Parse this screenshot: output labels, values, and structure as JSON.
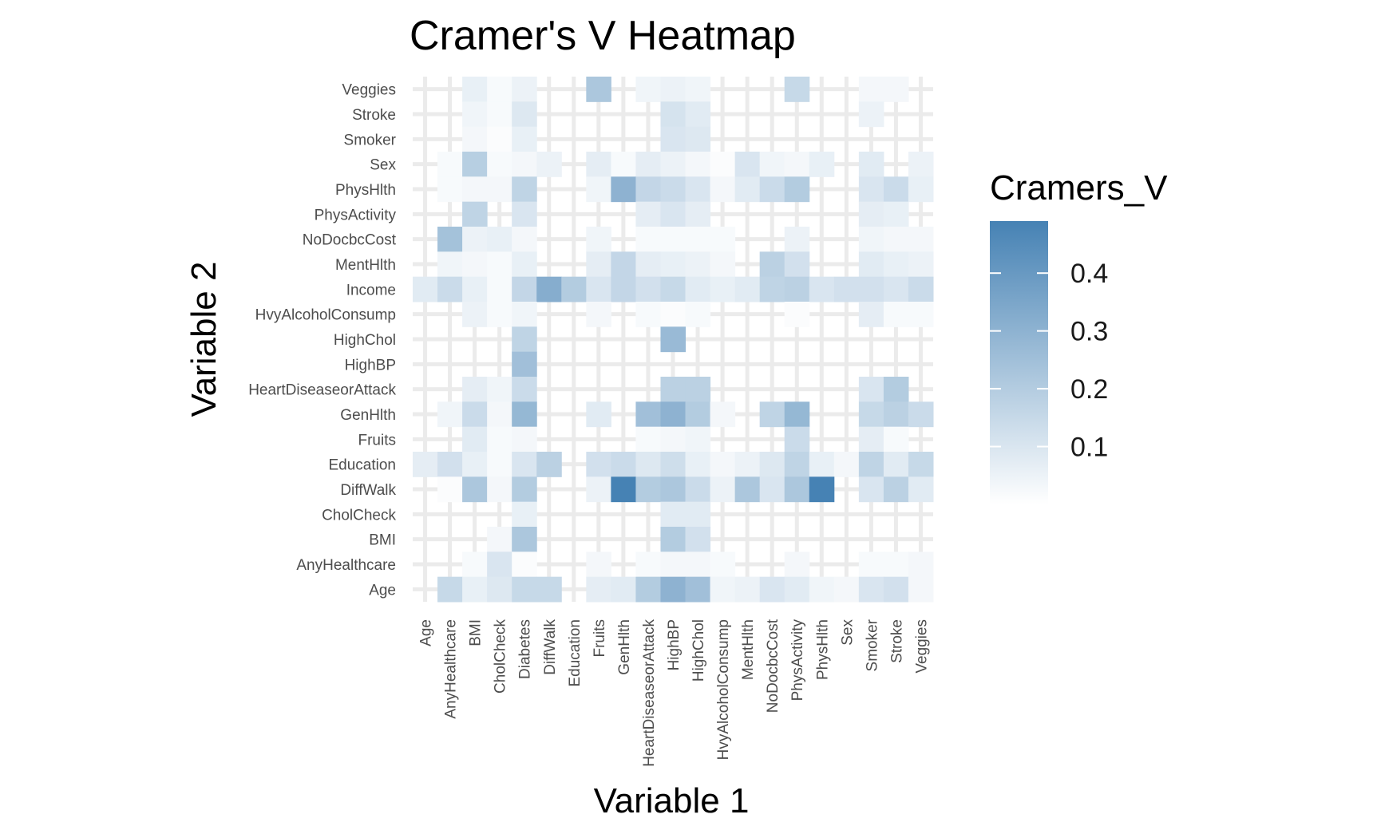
{
  "chart_data": {
    "type": "heatmap",
    "title": "Cramer's V Heatmap",
    "xlabel": "Variable 1",
    "ylabel": "Variable 2",
    "legend": {
      "title": "Cramers_V",
      "position": "right",
      "range": [
        0,
        0.49
      ],
      "breaks": [
        "0.1",
        "0.2",
        "0.3",
        "0.4"
      ],
      "break_values": [
        0.1,
        0.2,
        0.3,
        0.4
      ],
      "color_low": "#ffffff",
      "color_high": "#4682b4"
    },
    "grid": true,
    "x_categories": [
      "Age",
      "AnyHealthcare",
      "BMI",
      "CholCheck",
      "Diabetes",
      "DiffWalk",
      "Education",
      "Fruits",
      "GenHlth",
      "HeartDiseaseorAttack",
      "HighBP",
      "HighChol",
      "HvyAlcoholConsump",
      "MentHlth",
      "NoDocbcCost",
      "PhysActivity",
      "PhysHlth",
      "Sex",
      "Smoker",
      "Stroke",
      "Veggies"
    ],
    "y_categories": [
      "Age",
      "AnyHealthcare",
      "BMI",
      "CholCheck",
      "DiffWalk",
      "Education",
      "Fruits",
      "GenHlth",
      "HeartDiseaseorAttack",
      "HighBP",
      "HighChol",
      "HvyAlcoholConsump",
      "Income",
      "MentHlth",
      "NoDocbcCost",
      "PhysActivity",
      "PhysHlth",
      "Sex",
      "Smoker",
      "Stroke",
      "Veggies"
    ],
    "cells": [
      {
        "y": "Veggies",
        "values": [
          null,
          null,
          0.06,
          0.02,
          0.05,
          null,
          null,
          0.22,
          null,
          0.04,
          0.05,
          0.04,
          null,
          null,
          null,
          0.15,
          null,
          null,
          0.03,
          0.03,
          null
        ]
      },
      {
        "y": "Stroke",
        "values": [
          null,
          null,
          0.04,
          0.02,
          0.09,
          null,
          null,
          null,
          null,
          null,
          0.11,
          0.08,
          null,
          null,
          null,
          null,
          null,
          null,
          0.05,
          null,
          null
        ]
      },
      {
        "y": "Smoker",
        "values": [
          null,
          null,
          0.03,
          0.01,
          0.06,
          null,
          null,
          null,
          null,
          null,
          0.1,
          0.09,
          null,
          null,
          null,
          null,
          null,
          null,
          null,
          null,
          null
        ]
      },
      {
        "y": "Sex",
        "values": [
          null,
          0.02,
          0.19,
          0.02,
          0.03,
          0.05,
          null,
          0.07,
          0.02,
          0.07,
          0.05,
          0.03,
          0.01,
          0.1,
          0.04,
          0.03,
          0.06,
          null,
          0.08,
          null,
          0.05
        ]
      },
      {
        "y": "PhysHlth",
        "values": [
          null,
          0.02,
          0.03,
          0.03,
          0.17,
          null,
          null,
          0.04,
          0.3,
          0.16,
          0.14,
          0.1,
          0.03,
          0.08,
          0.14,
          0.2,
          null,
          null,
          0.1,
          0.14,
          0.06
        ]
      },
      {
        "y": "PhysActivity",
        "values": [
          null,
          null,
          0.17,
          null,
          0.1,
          null,
          null,
          null,
          null,
          0.07,
          0.1,
          0.07,
          null,
          null,
          null,
          null,
          null,
          null,
          0.07,
          0.06,
          null
        ]
      },
      {
        "y": "NoDocbcCost",
        "values": [
          null,
          0.24,
          0.05,
          0.06,
          0.03,
          null,
          null,
          0.04,
          null,
          0.02,
          0.02,
          0.02,
          0.02,
          null,
          null,
          0.05,
          null,
          null,
          0.04,
          0.03,
          0.03
        ]
      },
      {
        "y": "MentHlth",
        "values": [
          null,
          0.04,
          0.03,
          0.02,
          0.06,
          null,
          null,
          0.07,
          0.16,
          0.07,
          0.06,
          0.05,
          0.03,
          null,
          0.18,
          0.12,
          null,
          null,
          0.08,
          0.06,
          0.05
        ]
      },
      {
        "y": "Income",
        "values": [
          0.08,
          0.14,
          0.06,
          0.02,
          0.16,
          0.32,
          0.2,
          0.1,
          0.16,
          0.12,
          0.15,
          0.08,
          0.06,
          0.08,
          0.17,
          0.18,
          0.1,
          0.12,
          0.12,
          0.1,
          0.14
        ]
      },
      {
        "y": "HvyAlcoholConsump",
        "values": [
          null,
          null,
          0.05,
          0.02,
          0.04,
          null,
          null,
          0.03,
          null,
          0.02,
          0.01,
          0.02,
          null,
          null,
          null,
          0.01,
          null,
          null,
          0.07,
          0.02,
          0.02
        ]
      },
      {
        "y": "HighChol",
        "values": [
          null,
          null,
          null,
          null,
          0.17,
          null,
          null,
          null,
          null,
          null,
          0.27,
          null,
          null,
          null,
          null,
          null,
          null,
          null,
          null,
          null,
          null
        ]
      },
      {
        "y": "HighBP",
        "values": [
          null,
          null,
          null,
          null,
          0.25,
          null,
          null,
          null,
          null,
          null,
          null,
          null,
          null,
          null,
          null,
          null,
          null,
          null,
          null,
          null,
          null
        ]
      },
      {
        "y": "HeartDiseaseorAttack",
        "values": [
          null,
          null,
          0.07,
          0.04,
          0.14,
          null,
          null,
          null,
          null,
          null,
          0.18,
          0.18,
          null,
          null,
          null,
          null,
          null,
          null,
          0.1,
          0.2,
          null
        ]
      },
      {
        "y": "GenHlth",
        "values": [
          null,
          0.04,
          0.14,
          0.03,
          0.28,
          null,
          null,
          0.08,
          null,
          0.25,
          0.3,
          0.2,
          0.03,
          null,
          0.17,
          0.28,
          null,
          null,
          0.15,
          0.18,
          0.14
        ]
      },
      {
        "y": "Fruits",
        "values": [
          null,
          null,
          0.08,
          0.02,
          0.03,
          null,
          null,
          null,
          null,
          0.02,
          0.03,
          0.04,
          null,
          null,
          null,
          0.14,
          null,
          null,
          0.07,
          0.02,
          null
        ]
      },
      {
        "y": "Education",
        "values": [
          0.07,
          0.12,
          0.06,
          0.02,
          0.1,
          0.18,
          null,
          0.12,
          0.14,
          0.09,
          0.13,
          0.06,
          0.03,
          0.05,
          0.09,
          0.17,
          0.06,
          0.03,
          0.17,
          0.08,
          0.15
        ]
      },
      {
        "y": "DiffWalk",
        "values": [
          null,
          0.01,
          0.22,
          0.03,
          0.2,
          null,
          null,
          0.05,
          0.49,
          0.2,
          0.22,
          0.14,
          0.05,
          0.22,
          0.1,
          0.22,
          0.49,
          null,
          0.1,
          0.18,
          0.08
        ]
      },
      {
        "y": "CholCheck",
        "values": [
          null,
          null,
          null,
          null,
          0.06,
          null,
          null,
          null,
          null,
          null,
          0.08,
          0.08,
          null,
          null,
          null,
          null,
          null,
          null,
          null,
          null,
          null
        ]
      },
      {
        "y": "BMI",
        "values": [
          null,
          null,
          null,
          0.03,
          0.22,
          null,
          null,
          null,
          null,
          null,
          0.2,
          0.12,
          null,
          null,
          null,
          null,
          null,
          null,
          null,
          null,
          null
        ]
      },
      {
        "y": "AnyHealthcare",
        "values": [
          null,
          null,
          0.02,
          0.1,
          0.01,
          null,
          null,
          0.03,
          null,
          0.02,
          0.03,
          0.03,
          0.02,
          null,
          null,
          0.03,
          null,
          null,
          0.02,
          0.02,
          0.03
        ]
      },
      {
        "y": "Age",
        "values": [
          null,
          0.15,
          0.06,
          0.09,
          0.15,
          0.15,
          null,
          0.07,
          0.08,
          0.2,
          0.3,
          0.25,
          0.04,
          0.05,
          0.1,
          0.08,
          0.04,
          0.03,
          0.1,
          0.12,
          0.03
        ]
      }
    ]
  }
}
